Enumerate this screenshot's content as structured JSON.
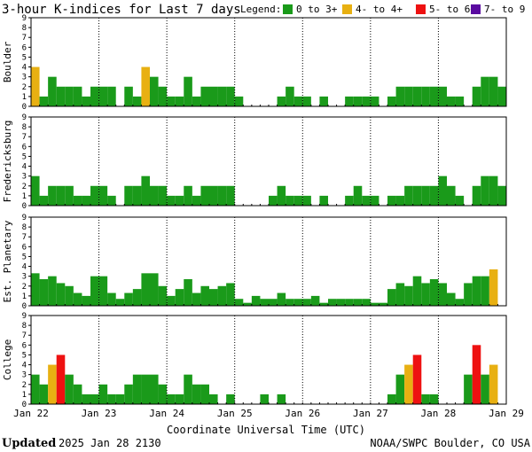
{
  "title": "3-hour K-indices for Last 7 days",
  "legend": {
    "label": "Legend:",
    "items": [
      {
        "label": "0 to 3+",
        "color": "#1a9a1a"
      },
      {
        "label": "4- to 4+",
        "color": "#e8b012"
      },
      {
        "label": "5- to 6+",
        "color": "#ee1111"
      },
      {
        "label": "7- to 9",
        "color": "#5a0aa0"
      }
    ]
  },
  "xlabel": "Coordinate Universal Time (UTC)",
  "footer": {
    "updated_label": "Updated",
    "updated_value": "2025 Jan 28 2130",
    "source": "NOAA/SWPC Boulder, CO USA"
  },
  "chart_data": [
    {
      "type": "bar",
      "name": "Boulder",
      "ylim": [
        0,
        9
      ],
      "yticks": [
        0,
        1,
        2,
        3,
        4,
        5,
        6,
        7,
        8,
        9
      ],
      "xticks": [
        "Jan 22",
        "Jan 23",
        "Jan 24",
        "Jan 25",
        "Jan 26",
        "Jan 27",
        "Jan 28",
        "Jan 29"
      ],
      "values": [
        4,
        1,
        3,
        2,
        2,
        2,
        1,
        2,
        2,
        2,
        0,
        2,
        1,
        4,
        3,
        2,
        1,
        1,
        3,
        1,
        2,
        2,
        2,
        2,
        1,
        0,
        0,
        0,
        0,
        1,
        2,
        1,
        1,
        0,
        1,
        0,
        0,
        1,
        1,
        1,
        1,
        0,
        1,
        2,
        2,
        2,
        2,
        2,
        2,
        1,
        1,
        0,
        2,
        3,
        3,
        2,
        0
      ]
    },
    {
      "type": "bar",
      "name": "Fredericksburg",
      "ylim": [
        0,
        9
      ],
      "yticks": [
        0,
        1,
        2,
        3,
        4,
        5,
        6,
        7,
        8,
        9
      ],
      "xticks": [
        "Jan 22",
        "Jan 23",
        "Jan 24",
        "Jan 25",
        "Jan 26",
        "Jan 27",
        "Jan 28",
        "Jan 29"
      ],
      "values": [
        3,
        1,
        2,
        2,
        2,
        1,
        1,
        2,
        2,
        1,
        0,
        2,
        2,
        3,
        2,
        2,
        1,
        1,
        2,
        1,
        2,
        2,
        2,
        2,
        0,
        0,
        0,
        0,
        1,
        2,
        1,
        1,
        1,
        0,
        1,
        0,
        0,
        1,
        2,
        1,
        1,
        0,
        1,
        1,
        2,
        2,
        2,
        2,
        3,
        2,
        1,
        0,
        2,
        3,
        3,
        2,
        0
      ]
    },
    {
      "type": "bar",
      "name": "Est. Planetary",
      "ylim": [
        0,
        9
      ],
      "yticks": [
        0,
        1,
        2,
        3,
        4,
        5,
        6,
        7,
        8,
        9
      ],
      "xticks": [
        "Jan 22",
        "Jan 23",
        "Jan 24",
        "Jan 25",
        "Jan 26",
        "Jan 27",
        "Jan 28",
        "Jan 29"
      ],
      "values": [
        3.3,
        2.7,
        3,
        2.3,
        2,
        1.3,
        1,
        3,
        3,
        1.3,
        0.7,
        1.3,
        1.7,
        3.3,
        3.3,
        2,
        1,
        1.7,
        2.7,
        1.3,
        2,
        1.7,
        2,
        2.3,
        0.7,
        0.3,
        1,
        0.7,
        0.7,
        1.3,
        0.7,
        0.7,
        0.7,
        1,
        0.3,
        0.7,
        0.7,
        0.7,
        0.7,
        0.7,
        0.3,
        0.3,
        1.7,
        2.3,
        2,
        3,
        2.3,
        2.7,
        2.3,
        1.3,
        0.7,
        2.3,
        3,
        3,
        3.7
      ]
    },
    {
      "type": "bar",
      "name": "College",
      "ylim": [
        0,
        9
      ],
      "yticks": [
        0,
        1,
        2,
        3,
        4,
        5,
        6,
        7,
        8,
        9
      ],
      "xticks": [
        "Jan 22",
        "Jan 23",
        "Jan 24",
        "Jan 25",
        "Jan 26",
        "Jan 27",
        "Jan 28",
        "Jan 29"
      ],
      "values": [
        3,
        2,
        4,
        5,
        3,
        2,
        1,
        1,
        2,
        1,
        1,
        2,
        3,
        3,
        3,
        2,
        1,
        1,
        3,
        2,
        2,
        1,
        0,
        1,
        0,
        0,
        0,
        1,
        0,
        1,
        0,
        0,
        0,
        0,
        0,
        0,
        0,
        0,
        0,
        0,
        0,
        0,
        1,
        3,
        4,
        5,
        1,
        1,
        0,
        0,
        0,
        3,
        6,
        3,
        4,
        0,
        0
      ]
    }
  ]
}
